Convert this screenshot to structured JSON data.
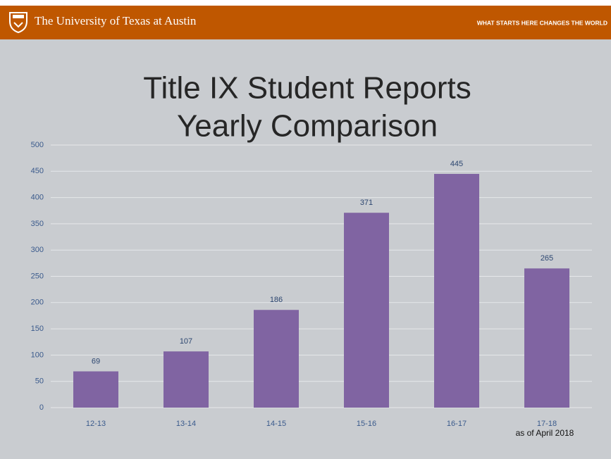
{
  "header": {
    "institution": "The University of Texas at Austin",
    "tagline": "WHAT STARTS HERE CHANGES THE WORLD"
  },
  "chart_data": {
    "type": "bar",
    "title": [
      "Title IX Student Reports",
      "Yearly Comparison"
    ],
    "categories": [
      "12-13",
      "13-14",
      "14-15",
      "15-16",
      "16-17",
      "17-18"
    ],
    "values": [
      69,
      107,
      186,
      371,
      445,
      265
    ],
    "color": "#8064a2",
    "annotation": "as of April 2018",
    "ylim": [
      0,
      500
    ],
    "yticks": [
      0,
      50,
      100,
      150,
      200,
      250,
      300,
      350,
      400,
      450,
      500
    ],
    "grid": true
  }
}
